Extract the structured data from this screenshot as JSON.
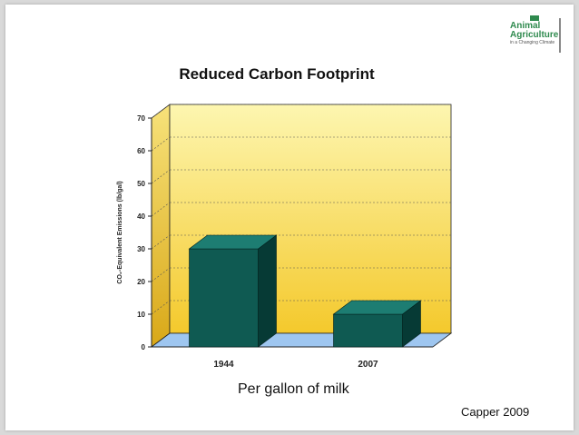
{
  "slide": {
    "title": "Reduced Carbon Footprint",
    "subtitle": "Per gallon of milk",
    "source": "Capper 2009",
    "logo": {
      "line1": "Animal",
      "line2": "Agriculture",
      "line3": "in a Changing Climate"
    }
  },
  "chart_data": {
    "type": "bar",
    "categories": [
      "1944",
      "2007"
    ],
    "values": [
      30,
      10
    ],
    "title": "",
    "xlabel": "",
    "ylabel": "CO₂-Equivalent Emissions (lb/gal)",
    "ylim": [
      0,
      70
    ],
    "yticks": [
      0,
      10,
      20,
      30,
      40,
      50,
      60,
      70
    ],
    "grid": true,
    "style": "3d-bar",
    "colors": {
      "bar": "#0f5a52",
      "bar_top": "#1d7d72",
      "bar_side": "#063a35",
      "wall_top": "#fdf6b0",
      "wall_bottom": "#f4c92c",
      "floor": "#9ec6f0"
    }
  }
}
